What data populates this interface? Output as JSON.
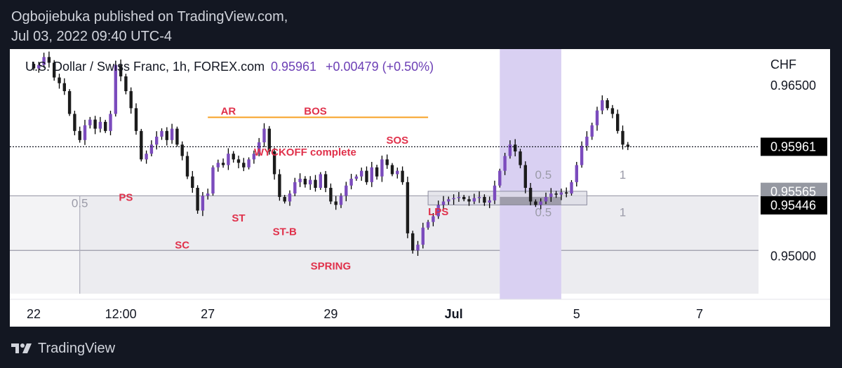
{
  "header": {
    "published_line": "Ogbojiebuka published on TradingView.com,",
    "date_line": "Jul 03, 2022 09:40 UTC-4"
  },
  "footer": {
    "brand": "TradingView"
  },
  "colors": {
    "background": "#131722",
    "candle": "#7b4bbd",
    "wick": "#000000",
    "label_red": "#e0314b",
    "bos_line": "#f7a024",
    "highlight": "#d9d0f2"
  },
  "chart_data": {
    "type": "candlestick",
    "title": "U.S. Dollar / Swiss Franc, 1h, FOREX.com",
    "last_price": "0.95961",
    "change": "+0.00479 (+0.50%)",
    "currency": "CHF",
    "ylim": [
      0.9462,
      0.9682
    ],
    "y_ticks": [
      "0.96500",
      "0.95000"
    ],
    "price_tags": [
      {
        "value": 0.95961,
        "label": "0.95961",
        "style": "dark"
      },
      {
        "value": 0.95565,
        "label": "0.95565",
        "style": "gray"
      },
      {
        "value": 0.95446,
        "label": "0.95446",
        "style": "dark"
      }
    ],
    "x_ticks": [
      {
        "label": "22",
        "t": 0
      },
      {
        "label": "12:00",
        "t": 17
      },
      {
        "label": "27",
        "t": 34
      },
      {
        "label": "29",
        "t": 58
      },
      {
        "label": "Jul",
        "t": 82
      },
      {
        "label": "5",
        "t": 106
      },
      {
        "label": "7",
        "t": 130
      }
    ],
    "closes": [
      0.9665,
      0.9668,
      0.9675,
      0.967,
      0.9657,
      0.9652,
      0.9645,
      0.9625,
      0.961,
      0.9602,
      0.9615,
      0.962,
      0.9612,
      0.9618,
      0.961,
      0.9625,
      0.9668,
      0.9658,
      0.9645,
      0.963,
      0.961,
      0.9585,
      0.959,
      0.9598,
      0.9605,
      0.961,
      0.9602,
      0.9612,
      0.9598,
      0.9588,
      0.957,
      0.956,
      0.954,
      0.9553,
      0.9555,
      0.9578,
      0.9582,
      0.958,
      0.959,
      0.9585,
      0.9582,
      0.9578,
      0.9585,
      0.959,
      0.96,
      0.9612,
      0.9592,
      0.9572,
      0.9552,
      0.9548,
      0.9555,
      0.9565,
      0.9568,
      0.9563,
      0.9567,
      0.956,
      0.9572,
      0.956,
      0.9548,
      0.9545,
      0.9553,
      0.9562,
      0.9568,
      0.957,
      0.9575,
      0.9565,
      0.9578,
      0.957,
      0.9585,
      0.958,
      0.9572,
      0.9575,
      0.9565,
      0.952,
      0.9505,
      0.951,
      0.9525,
      0.953,
      0.9535,
      0.9545,
      0.9548,
      0.955,
      0.9551,
      0.9552,
      0.955,
      0.9548,
      0.9551,
      0.9552,
      0.9547,
      0.9549,
      0.9562,
      0.9575,
      0.9588,
      0.9598,
      0.9592,
      0.958,
      0.956,
      0.9548,
      0.9545,
      0.9548,
      0.9552,
      0.9555,
      0.9554,
      0.9556,
      0.9555,
      0.9565,
      0.958,
      0.9597,
      0.9605,
      0.9615,
      0.9628,
      0.9637,
      0.963,
      0.9625,
      0.961,
      0.9598,
      0.9596
    ],
    "annotations": [
      {
        "text": "AR",
        "t": 38,
        "price": 0.96245
      },
      {
        "text": "BOS",
        "t": 55,
        "price": 0.96245
      },
      {
        "text": "WYCKOFF complete",
        "t": 53,
        "price": 0.95882
      },
      {
        "text": "SOS",
        "t": 71,
        "price": 0.95989
      },
      {
        "text": "PS",
        "t": 18,
        "price": 0.95487
      },
      {
        "text": "ST",
        "t": 40,
        "price": 0.95304
      },
      {
        "text": "ST-B",
        "t": 49,
        "price": 0.95184
      },
      {
        "text": "SC",
        "t": 29,
        "price": 0.95068
      },
      {
        "text": "LPS",
        "t": 79,
        "price": 0.95361
      },
      {
        "text": "SPRING",
        "t": 58,
        "price": 0.94881
      }
    ],
    "bos_level": {
      "price": 0.9622,
      "t_start": 34,
      "t_end": 77
    },
    "fib_labels": [
      {
        "text": "0.5",
        "t": 9,
        "price": 0.9543
      },
      {
        "text": "0.5",
        "t": 99.5,
        "price": 0.9568
      },
      {
        "text": "1",
        "t": 115,
        "price": 0.9568
      },
      {
        "text": "0.5",
        "t": 99.5,
        "price": 0.9535
      },
      {
        "text": "1",
        "t": 115,
        "price": 0.9535
      }
    ],
    "zones": {
      "box_top": 0.9553,
      "box_mid": 0.9505,
      "split_t": 9,
      "range_top": 0.9557,
      "range_bottom": 0.9545,
      "range_t_start": 77,
      "range_t_end": 108,
      "highlight_t_start": 91,
      "highlight_t_end": 103
    }
  }
}
